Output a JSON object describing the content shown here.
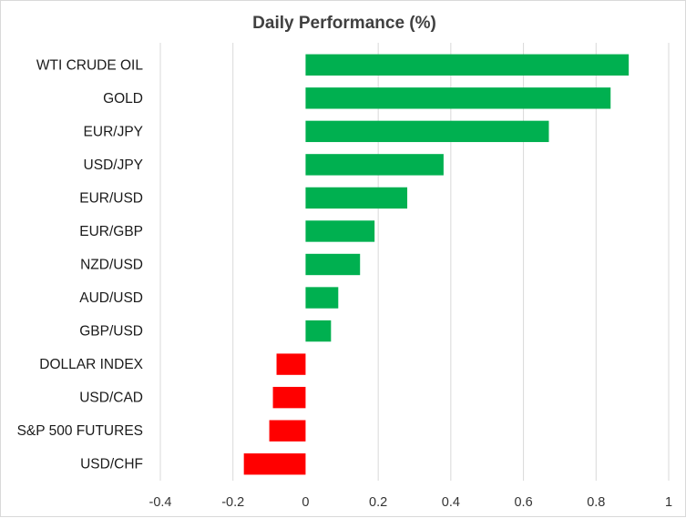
{
  "chart_data": {
    "type": "bar",
    "orientation": "horizontal",
    "title": "Daily Performance  (%)",
    "categories": [
      "WTI CRUDE OIL",
      "GOLD",
      "EUR/JPY",
      "USD/JPY",
      "EUR/USD",
      "EUR/GBP",
      "NZD/USD",
      "AUD/USD",
      "GBP/USD",
      "DOLLAR INDEX",
      "USD/CAD",
      "S&P 500 FUTURES",
      "USD/CHF"
    ],
    "values": [
      0.89,
      0.84,
      0.67,
      0.38,
      0.28,
      0.19,
      0.15,
      0.09,
      0.07,
      -0.08,
      -0.09,
      -0.1,
      -0.17
    ],
    "xlim": [
      -0.4,
      1
    ],
    "ticks": [
      -0.4,
      -0.2,
      0,
      0.2,
      0.4,
      0.6,
      0.8,
      1
    ],
    "tick_labels": [
      "-0.4",
      "-0.2",
      "0",
      "0.2",
      "0.4",
      "0.6",
      "0.8",
      "1"
    ],
    "grid": "vertical",
    "colors": {
      "positive": "#00b050",
      "negative": "#ff0000",
      "gridline": "#d9d9d9"
    }
  }
}
